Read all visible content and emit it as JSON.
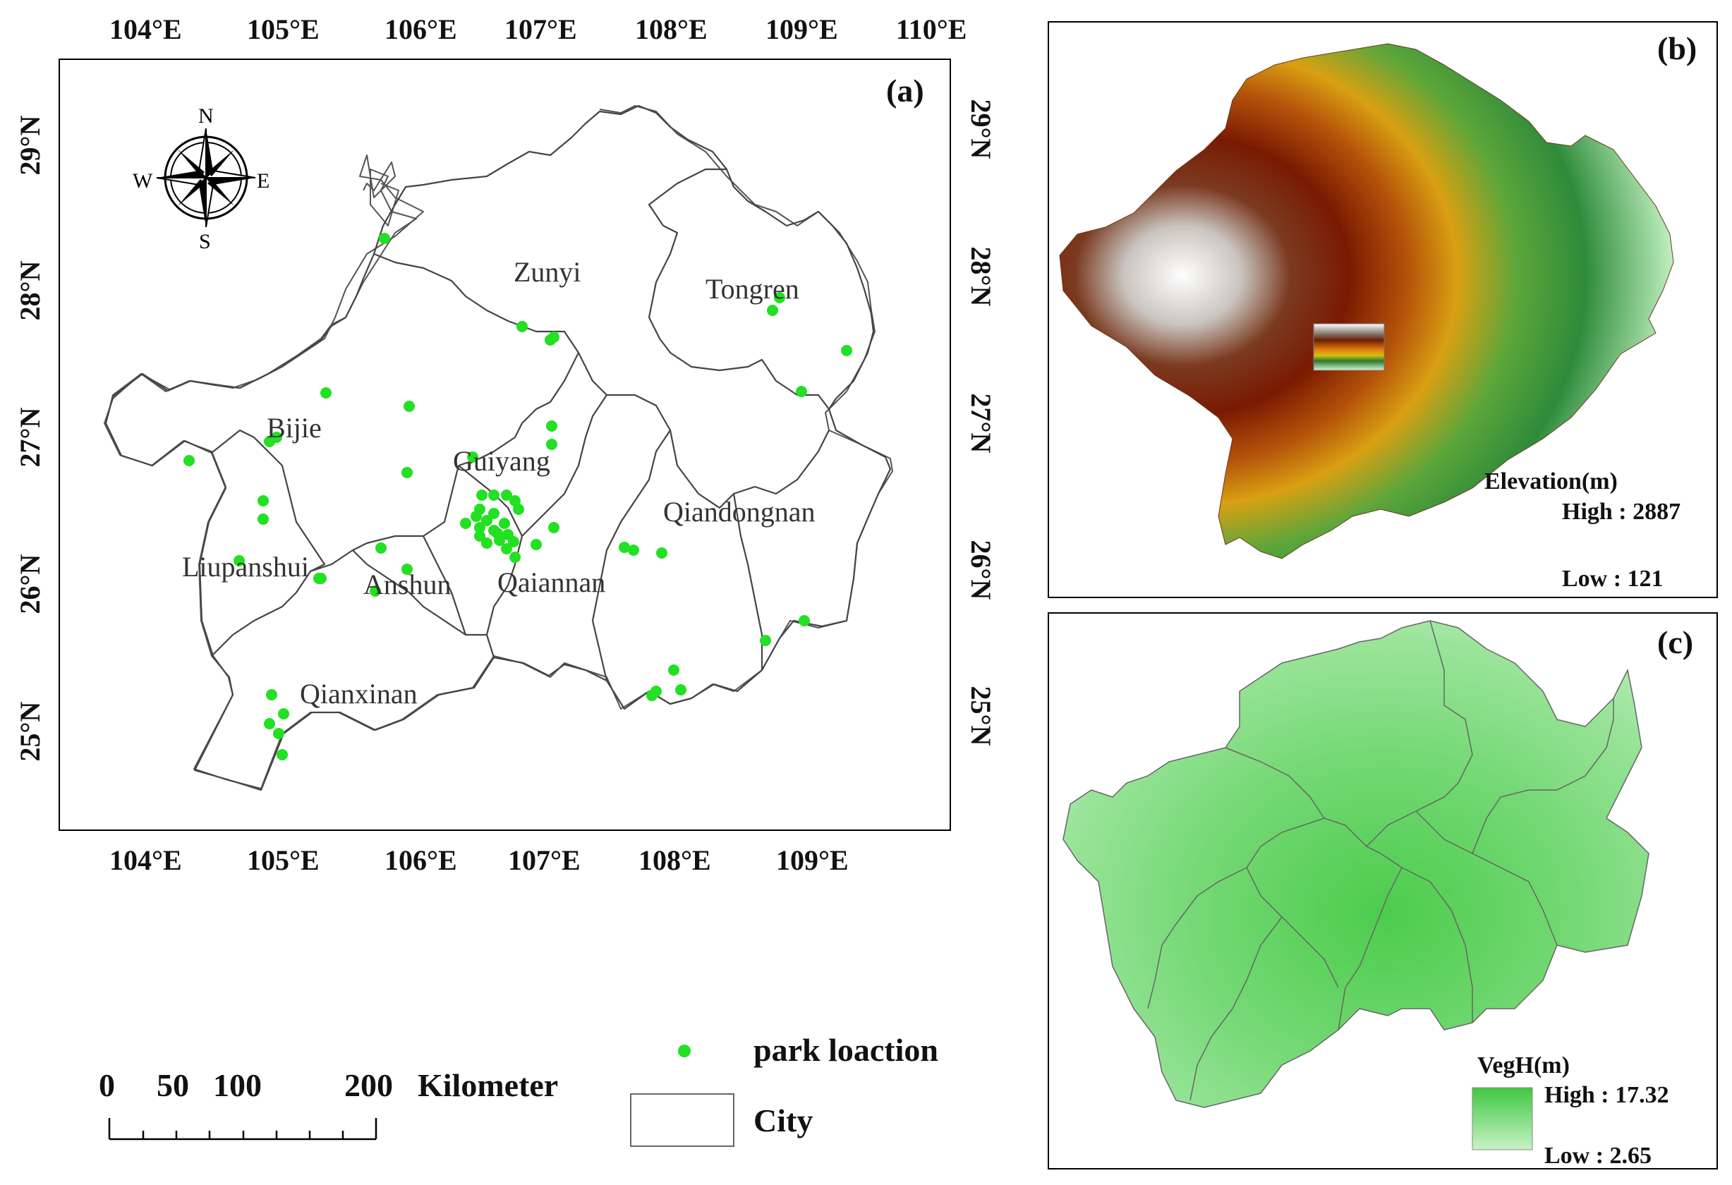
{
  "panel_a": {
    "tag": "(a)",
    "top_lon_labels": [
      "104°E",
      "105°E",
      "106°E",
      "107°E",
      "108°E",
      "109°E",
      "110°E"
    ],
    "bottom_lon_labels": [
      "104°E",
      "105°E",
      "106°E",
      "107°E",
      "108°E",
      "109°E"
    ],
    "left_lat_labels": [
      "29°N",
      "28°N",
      "27°N",
      "26°N",
      "25°N"
    ],
    "right_lat_labels": [
      "29°N",
      "28°N",
      "27°N",
      "26°N",
      "25°N"
    ],
    "compass": {
      "n": "N",
      "s": "S",
      "e": "E",
      "w": "W"
    },
    "cities": [
      "Zunyi",
      "Tongren",
      "Bijie",
      "Guiyang",
      "Qiandongnan",
      "Liupanshui",
      "Anshun",
      "Qaiannan",
      "Qianxinan"
    ]
  },
  "panel_b": {
    "tag": "(b)",
    "legend_title": "Elevation(m)",
    "high": "High : 2887",
    "low": "Low : 121",
    "colors": [
      "#ffffff",
      "#8b8178",
      "#6b1d05",
      "#8b2a06",
      "#e07a10",
      "#d7c10e",
      "#2a7a2a",
      "#9fe0a0",
      "#d8f5d8"
    ]
  },
  "panel_c": {
    "tag": "(c)",
    "legend_title": "VegH(m)",
    "high": "High : 17.32",
    "low": "Low : 2.65",
    "colors": [
      "#3fc83f",
      "#c8f2c8"
    ]
  },
  "legend": {
    "park": "park loaction",
    "city": "City",
    "park_color": "#22e022",
    "scale_numbers": [
      "0",
      "50",
      "100",
      "200"
    ],
    "scale_unit": "Kilometer"
  }
}
